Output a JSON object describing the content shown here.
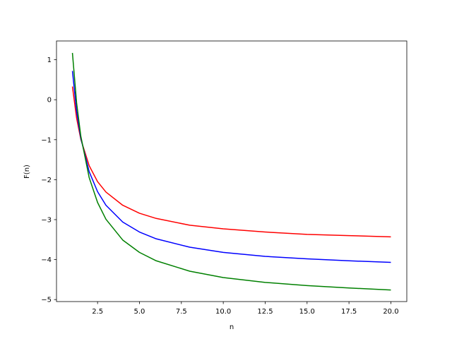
{
  "chart_data": {
    "type": "line",
    "x_label": "n",
    "y_label": "F(n)",
    "x": [
      1,
      1.25,
      1.5,
      2,
      2.5,
      3,
      4,
      5,
      6,
      8,
      10,
      12.5,
      15,
      17.5,
      20
    ],
    "series": [
      {
        "color": "#ff0000",
        "values": [
          0.33,
          -0.46,
          -0.99,
          -1.65,
          -2.05,
          -2.31,
          -2.64,
          -2.84,
          -2.97,
          -3.14,
          -3.23,
          -3.31,
          -3.37,
          -3.4,
          -3.43
        ]
      },
      {
        "color": "#0000ff",
        "values": [
          0.72,
          -0.29,
          -0.96,
          -1.8,
          -2.3,
          -2.64,
          -3.06,
          -3.31,
          -3.48,
          -3.69,
          -3.82,
          -3.92,
          -3.98,
          -4.03,
          -4.07
        ]
      },
      {
        "color": "#008000",
        "values": [
          1.17,
          -0.08,
          -0.91,
          -1.95,
          -2.57,
          -2.99,
          -3.51,
          -3.82,
          -4.03,
          -4.29,
          -4.45,
          -4.57,
          -4.65,
          -4.71,
          -4.76
        ]
      }
    ],
    "xlim": [
      0.05,
      20.95
    ],
    "ylim": [
      -5.05,
      1.47
    ],
    "xticks": [
      {
        "value": 2.5,
        "label": "2.5"
      },
      {
        "value": 5,
        "label": "5.0"
      },
      {
        "value": 7.5,
        "label": "7.5"
      },
      {
        "value": 10,
        "label": "10.0"
      },
      {
        "value": 12.5,
        "label": "12.5"
      },
      {
        "value": 15,
        "label": "15.0"
      },
      {
        "value": 17.5,
        "label": "17.5"
      },
      {
        "value": 20,
        "label": "20.0"
      }
    ],
    "yticks": [
      {
        "value": -5,
        "label": "−5"
      },
      {
        "value": -4,
        "label": "−4"
      },
      {
        "value": -3,
        "label": "−3"
      },
      {
        "value": -2,
        "label": "−2"
      },
      {
        "value": -1,
        "label": "−1"
      },
      0,
      1
    ],
    "grid": false
  }
}
